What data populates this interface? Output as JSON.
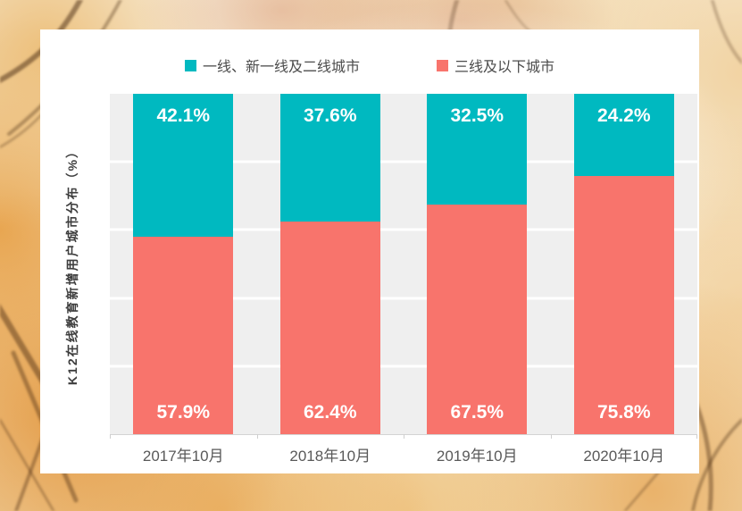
{
  "background": {
    "theme": "autumn-leaves-photo",
    "base_color": "#f5e6c8",
    "branch_color": "#46280f"
  },
  "card": {
    "background": "#ffffff"
  },
  "chart_data": {
    "type": "bar",
    "stacked": true,
    "orientation": "vertical",
    "title": "",
    "ylabel": "K12在线教育新增用户城市分布（%）",
    "categories": [
      "2017年10月",
      "2018年10月",
      "2019年10月",
      "2020年10月"
    ],
    "series": [
      {
        "name": "一线、新一线及二线城市",
        "color": "#00b9c0",
        "position": "top",
        "values": [
          42.1,
          37.6,
          32.5,
          24.2
        ],
        "labels": [
          "42.1%",
          "37.6%",
          "32.5%",
          "24.2%"
        ]
      },
      {
        "name": "三线及以下城市",
        "color": "#f8746c",
        "position": "bottom",
        "values": [
          57.9,
          62.4,
          67.5,
          75.8
        ],
        "labels": [
          "57.9%",
          "62.4%",
          "67.5%",
          "75.8%"
        ]
      }
    ],
    "ylim": [
      0,
      100
    ],
    "grid": true,
    "gridline_interval": 20,
    "gridline_color": "#ffffff",
    "plot_background": "#efefef",
    "axis_color": "#d4d4d4",
    "category_label_color": "#595959",
    "value_label_color": "#ffffff",
    "legend_position": "top"
  }
}
